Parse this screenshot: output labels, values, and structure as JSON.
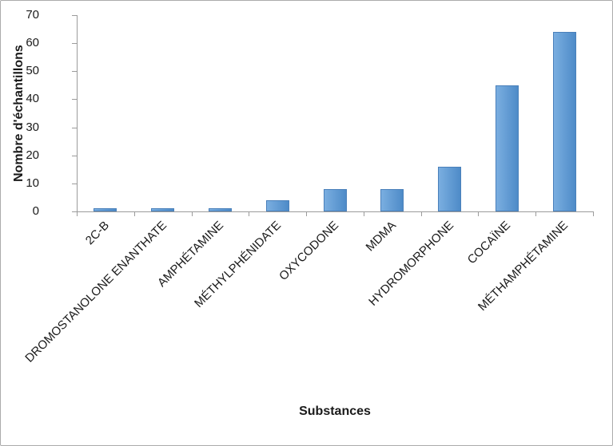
{
  "chart_data": {
    "type": "bar",
    "categories": [
      "2C-B",
      "DROMOSTANOLONE ENANTHATE",
      "AMPHÉTAMINE",
      "MÉTHYLPHÉNIDATE",
      "OXYCODONE",
      "MDMA",
      "HYDROMORPHONE",
      "COCAÏNE",
      "MÉTHAMPHÉTAMINE"
    ],
    "values": [
      1,
      1,
      1,
      4,
      8,
      8,
      16,
      45,
      64
    ],
    "xlabel": "Substances",
    "ylabel": "Nombre d'échantillons",
    "ylim": [
      0,
      70
    ],
    "ytick_step": 10,
    "ytick_labels": [
      "0",
      "10",
      "20",
      "30",
      "40",
      "50",
      "60",
      "70"
    ],
    "grid": false,
    "legend": false,
    "bar_color": "#5b9bd5",
    "bar_color_light": "#7aaee0",
    "bar_color_dark": "#4e8bc8",
    "bar_border_color": "#4a80ba",
    "axis_color": "#9b9b9b",
    "text_color": "#1a1a1a"
  }
}
